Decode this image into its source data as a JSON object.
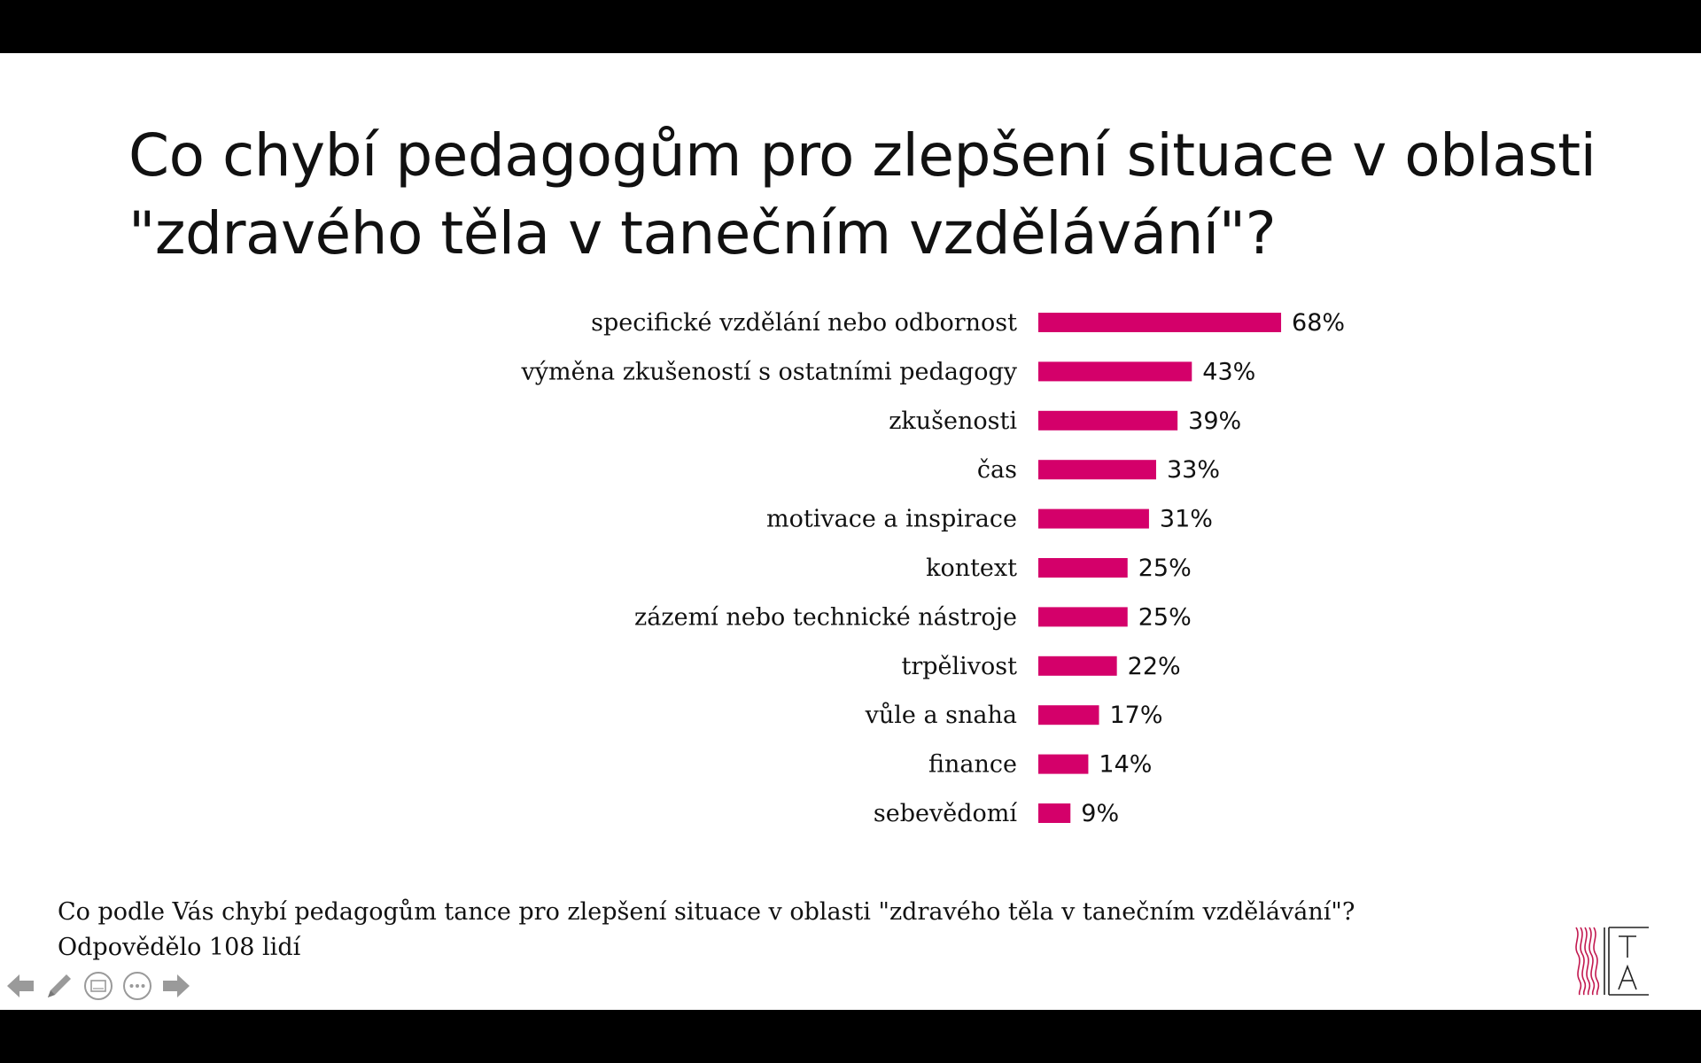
{
  "slide": {
    "title_line1": "Co chybí pedagogům pro zlepšení situace v oblasti",
    "title_line2": "\"zdravého těla v tanečním vzdělávání\"?",
    "footnote_line1": "Co podle Vás chybí pedagogům tance pro zlepšení situace v oblasti \"zdravého těla v tanečním vzdělávání\"?",
    "footnote_line2": "Odpovědělo 108 lidí"
  },
  "chart_data": {
    "type": "bar",
    "orientation": "horizontal",
    "title": "",
    "xlabel": "",
    "ylabel": "",
    "categories": [
      "specifické vzdělání nebo odbornost",
      "výměna zkušeností s ostatními pedagogy",
      "zkušenosti",
      "čas",
      "motivace a inspirace",
      "kontext",
      "zázemí nebo technické nástroje",
      "trpělivost",
      "vůle a snaha",
      "finance",
      "sebevědomí"
    ],
    "values": [
      68,
      43,
      39,
      33,
      31,
      25,
      25,
      22,
      17,
      14,
      9
    ],
    "value_labels": [
      "68%",
      "43%",
      "39%",
      "33%",
      "31%",
      "25%",
      "25%",
      "22%",
      "17%",
      "14%",
      "9%"
    ],
    "unit": "%",
    "xlim": [
      0,
      100
    ],
    "grid": false,
    "legend": "none",
    "bar_color": "#D4006A"
  },
  "toolbar": {
    "icons": [
      "arrow-left-icon",
      "pen-icon",
      "slides-icon",
      "more-icon",
      "arrow-right-icon"
    ]
  },
  "colors": {
    "bar": "#D4006A",
    "logo_wave": "#C2184F"
  }
}
